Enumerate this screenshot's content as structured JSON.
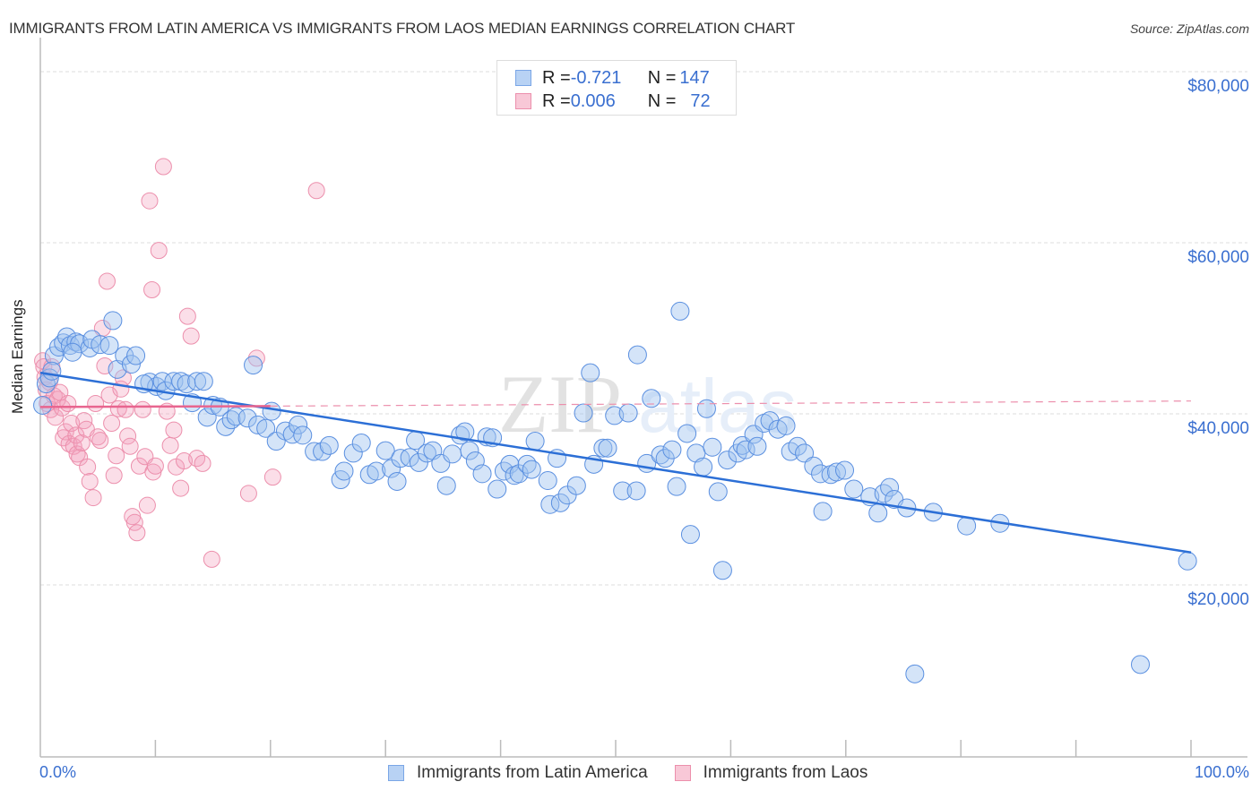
{
  "header": {
    "title": "IMMIGRANTS FROM LATIN AMERICA VS IMMIGRANTS FROM LAOS MEDIAN EARNINGS CORRELATION CHART",
    "source": "Source: ZipAtlas.com"
  },
  "legend_stats": [
    {
      "r_label": "R = ",
      "r_value": "-0.721",
      "n_label": "N = ",
      "n_value": "147"
    },
    {
      "r_label": "R = ",
      "r_value": "0.006",
      "n_label": "N = ",
      "n_value": "72"
    }
  ],
  "watermark": {
    "zip": "ZIP",
    "atlas": "atlas"
  },
  "chart_data": {
    "type": "scatter",
    "title": "IMMIGRANTS FROM LATIN AMERICA VS IMMIGRANTS FROM LAOS MEDIAN EARNINGS CORRELATION CHART",
    "xlabel": "",
    "ylabel": "Median Earnings",
    "xlim": [
      0,
      100
    ],
    "ylim": [
      0,
      84000
    ],
    "x_tick_labels": [
      "0.0%",
      "100.0%"
    ],
    "y_ticks": [
      20000,
      40000,
      60000,
      80000
    ],
    "y_tick_labels": [
      "$20,000",
      "$40,000",
      "$60,000",
      "$80,000"
    ],
    "grid": true,
    "legend_position": "bottom-center",
    "colors": {
      "latin_america": "#3a78d8",
      "laos": "#e8658f"
    },
    "series": [
      {
        "name": "Immigrants from Latin America",
        "r": -0.721,
        "n": 147,
        "trend": {
          "x": [
            0,
            100
          ],
          "y": [
            44800,
            23800
          ]
        },
        "points": [
          [
            0.2,
            41000
          ],
          [
            0.5,
            43500
          ],
          [
            0.8,
            44200
          ],
          [
            1.2,
            46800
          ],
          [
            1.6,
            47800
          ],
          [
            2.0,
            48300
          ],
          [
            2.3,
            49000
          ],
          [
            2.6,
            48000
          ],
          [
            3.1,
            48400
          ],
          [
            3.4,
            48200
          ],
          [
            4.3,
            47700
          ],
          [
            4.5,
            48700
          ],
          [
            5.2,
            48100
          ],
          [
            6.3,
            50900
          ],
          [
            6.7,
            45200
          ],
          [
            7.3,
            46800
          ],
          [
            7.9,
            45800
          ],
          [
            8.3,
            46800
          ],
          [
            9.5,
            43700
          ],
          [
            10.1,
            43200
          ],
          [
            10.6,
            43800
          ],
          [
            10.9,
            42700
          ],
          [
            11.6,
            43800
          ],
          [
            12.2,
            43800
          ],
          [
            12.7,
            43500
          ],
          [
            13.2,
            41300
          ],
          [
            13.6,
            43800
          ],
          [
            14.2,
            43800
          ],
          [
            14.5,
            39600
          ],
          [
            15.0,
            41000
          ],
          [
            15.6,
            40800
          ],
          [
            16.1,
            38500
          ],
          [
            16.6,
            39300
          ],
          [
            17.0,
            39700
          ],
          [
            18.0,
            39500
          ],
          [
            18.5,
            45700
          ],
          [
            18.9,
            38700
          ],
          [
            19.6,
            38300
          ],
          [
            20.1,
            40300
          ],
          [
            20.5,
            36800
          ],
          [
            21.3,
            38000
          ],
          [
            21.9,
            37600
          ],
          [
            22.4,
            38700
          ],
          [
            22.8,
            37500
          ],
          [
            23.8,
            35600
          ],
          [
            24.5,
            35600
          ],
          [
            25.1,
            36300
          ],
          [
            26.1,
            32300
          ],
          [
            26.4,
            33300
          ],
          [
            27.2,
            35400
          ],
          [
            27.9,
            36600
          ],
          [
            28.6,
            32900
          ],
          [
            29.2,
            33300
          ],
          [
            30.0,
            35700
          ],
          [
            30.5,
            33600
          ],
          [
            31.0,
            32100
          ],
          [
            31.3,
            34800
          ],
          [
            32.1,
            34900
          ],
          [
            32.6,
            36900
          ],
          [
            32.9,
            34300
          ],
          [
            33.6,
            35400
          ],
          [
            34.1,
            35700
          ],
          [
            34.8,
            34200
          ],
          [
            35.3,
            31600
          ],
          [
            35.8,
            35300
          ],
          [
            36.5,
            37500
          ],
          [
            36.9,
            37900
          ],
          [
            37.3,
            35700
          ],
          [
            37.8,
            34500
          ],
          [
            38.4,
            33000
          ],
          [
            38.8,
            37300
          ],
          [
            39.3,
            37200
          ],
          [
            39.7,
            31200
          ],
          [
            40.3,
            33300
          ],
          [
            40.8,
            34100
          ],
          [
            41.2,
            32800
          ],
          [
            41.6,
            33000
          ],
          [
            42.3,
            34100
          ],
          [
            42.7,
            33500
          ],
          [
            43.0,
            36800
          ],
          [
            44.1,
            32200
          ],
          [
            44.3,
            29400
          ],
          [
            44.9,
            34800
          ],
          [
            45.2,
            29600
          ],
          [
            45.8,
            30500
          ],
          [
            46.6,
            31600
          ],
          [
            47.2,
            40100
          ],
          [
            47.8,
            44800
          ],
          [
            48.1,
            34100
          ],
          [
            48.9,
            36000
          ],
          [
            49.3,
            36000
          ],
          [
            49.9,
            39800
          ],
          [
            50.6,
            31000
          ],
          [
            51.1,
            40100
          ],
          [
            51.8,
            31000
          ],
          [
            51.9,
            46900
          ],
          [
            52.7,
            34200
          ],
          [
            53.1,
            41800
          ],
          [
            53.9,
            35200
          ],
          [
            54.3,
            34800
          ],
          [
            54.9,
            35800
          ],
          [
            55.3,
            31500
          ],
          [
            55.6,
            52000
          ],
          [
            56.2,
            37700
          ],
          [
            56.5,
            25900
          ],
          [
            57.0,
            35400
          ],
          [
            57.6,
            33800
          ],
          [
            57.9,
            40600
          ],
          [
            58.4,
            36100
          ],
          [
            58.9,
            30900
          ],
          [
            59.3,
            21700
          ],
          [
            59.7,
            34600
          ],
          [
            60.6,
            35400
          ],
          [
            61.0,
            36300
          ],
          [
            61.3,
            35800
          ],
          [
            62.0,
            37600
          ],
          [
            62.3,
            36200
          ],
          [
            62.9,
            38900
          ],
          [
            63.4,
            39200
          ],
          [
            64.1,
            38200
          ],
          [
            64.8,
            38600
          ],
          [
            65.2,
            35600
          ],
          [
            65.8,
            36200
          ],
          [
            66.4,
            35400
          ],
          [
            67.2,
            33900
          ],
          [
            67.8,
            33000
          ],
          [
            68.0,
            28600
          ],
          [
            68.7,
            32900
          ],
          [
            69.2,
            33200
          ],
          [
            69.9,
            33400
          ],
          [
            70.7,
            31200
          ],
          [
            72.1,
            30300
          ],
          [
            72.8,
            28400
          ],
          [
            73.3,
            30700
          ],
          [
            73.8,
            31400
          ],
          [
            74.2,
            30000
          ],
          [
            75.3,
            29000
          ],
          [
            76.0,
            9600
          ],
          [
            77.6,
            28500
          ],
          [
            80.5,
            26900
          ],
          [
            83.4,
            27200
          ],
          [
            95.6,
            10700
          ],
          [
            99.7,
            22800
          ],
          [
            1.0,
            45000
          ],
          [
            2.8,
            47200
          ],
          [
            6.0,
            48000
          ],
          [
            9.0,
            43500
          ]
        ]
      },
      {
        "name": "Immigrants from Laos",
        "r": 0.006,
        "n": 72,
        "trend": {
          "x": [
            0,
            20
          ],
          "y": [
            40800,
            40900
          ],
          "dashed_extension": {
            "x": [
              20,
              100
            ],
            "y": [
              40900,
              41500
            ]
          }
        },
        "points": [
          [
            0.2,
            46200
          ],
          [
            0.3,
            45500
          ],
          [
            0.4,
            44300
          ],
          [
            0.5,
            42800
          ],
          [
            0.6,
            41200
          ],
          [
            0.8,
            43700
          ],
          [
            0.9,
            40500
          ],
          [
            1.0,
            45500
          ],
          [
            1.2,
            42100
          ],
          [
            1.3,
            39600
          ],
          [
            1.5,
            41700
          ],
          [
            1.7,
            42500
          ],
          [
            1.9,
            40700
          ],
          [
            2.0,
            37200
          ],
          [
            2.2,
            37900
          ],
          [
            2.4,
            41200
          ],
          [
            2.5,
            36500
          ],
          [
            2.7,
            38900
          ],
          [
            2.9,
            36200
          ],
          [
            3.1,
            37500
          ],
          [
            3.2,
            35300
          ],
          [
            3.4,
            34900
          ],
          [
            3.6,
            36600
          ],
          [
            3.8,
            39200
          ],
          [
            4.0,
            38200
          ],
          [
            4.1,
            33800
          ],
          [
            4.3,
            32100
          ],
          [
            4.6,
            30200
          ],
          [
            4.8,
            41200
          ],
          [
            5.0,
            37300
          ],
          [
            5.2,
            36900
          ],
          [
            5.4,
            50000
          ],
          [
            5.6,
            45600
          ],
          [
            5.8,
            55500
          ],
          [
            6.0,
            42200
          ],
          [
            6.2,
            38900
          ],
          [
            6.4,
            32800
          ],
          [
            6.6,
            35100
          ],
          [
            6.8,
            40600
          ],
          [
            7.0,
            42900
          ],
          [
            7.2,
            44200
          ],
          [
            7.4,
            40500
          ],
          [
            7.6,
            37400
          ],
          [
            7.8,
            36200
          ],
          [
            8.0,
            28000
          ],
          [
            8.2,
            27300
          ],
          [
            8.4,
            26100
          ],
          [
            8.6,
            33900
          ],
          [
            8.9,
            40500
          ],
          [
            9.1,
            35000
          ],
          [
            9.3,
            29300
          ],
          [
            9.5,
            64900
          ],
          [
            9.7,
            54500
          ],
          [
            9.8,
            33200
          ],
          [
            10.0,
            33900
          ],
          [
            10.3,
            59100
          ],
          [
            10.7,
            68900
          ],
          [
            11.0,
            40300
          ],
          [
            11.3,
            36300
          ],
          [
            11.6,
            38100
          ],
          [
            11.8,
            33800
          ],
          [
            12.2,
            31300
          ],
          [
            12.5,
            34500
          ],
          [
            12.8,
            51400
          ],
          [
            13.1,
            49100
          ],
          [
            13.6,
            34800
          ],
          [
            14.1,
            34200
          ],
          [
            14.9,
            23000
          ],
          [
            18.1,
            30700
          ],
          [
            18.8,
            46500
          ],
          [
            20.2,
            32600
          ],
          [
            24.0,
            66100
          ]
        ]
      }
    ]
  },
  "bottom_legend": [
    {
      "label": "Immigrants from Latin America"
    },
    {
      "label": "Immigrants from Laos"
    }
  ]
}
